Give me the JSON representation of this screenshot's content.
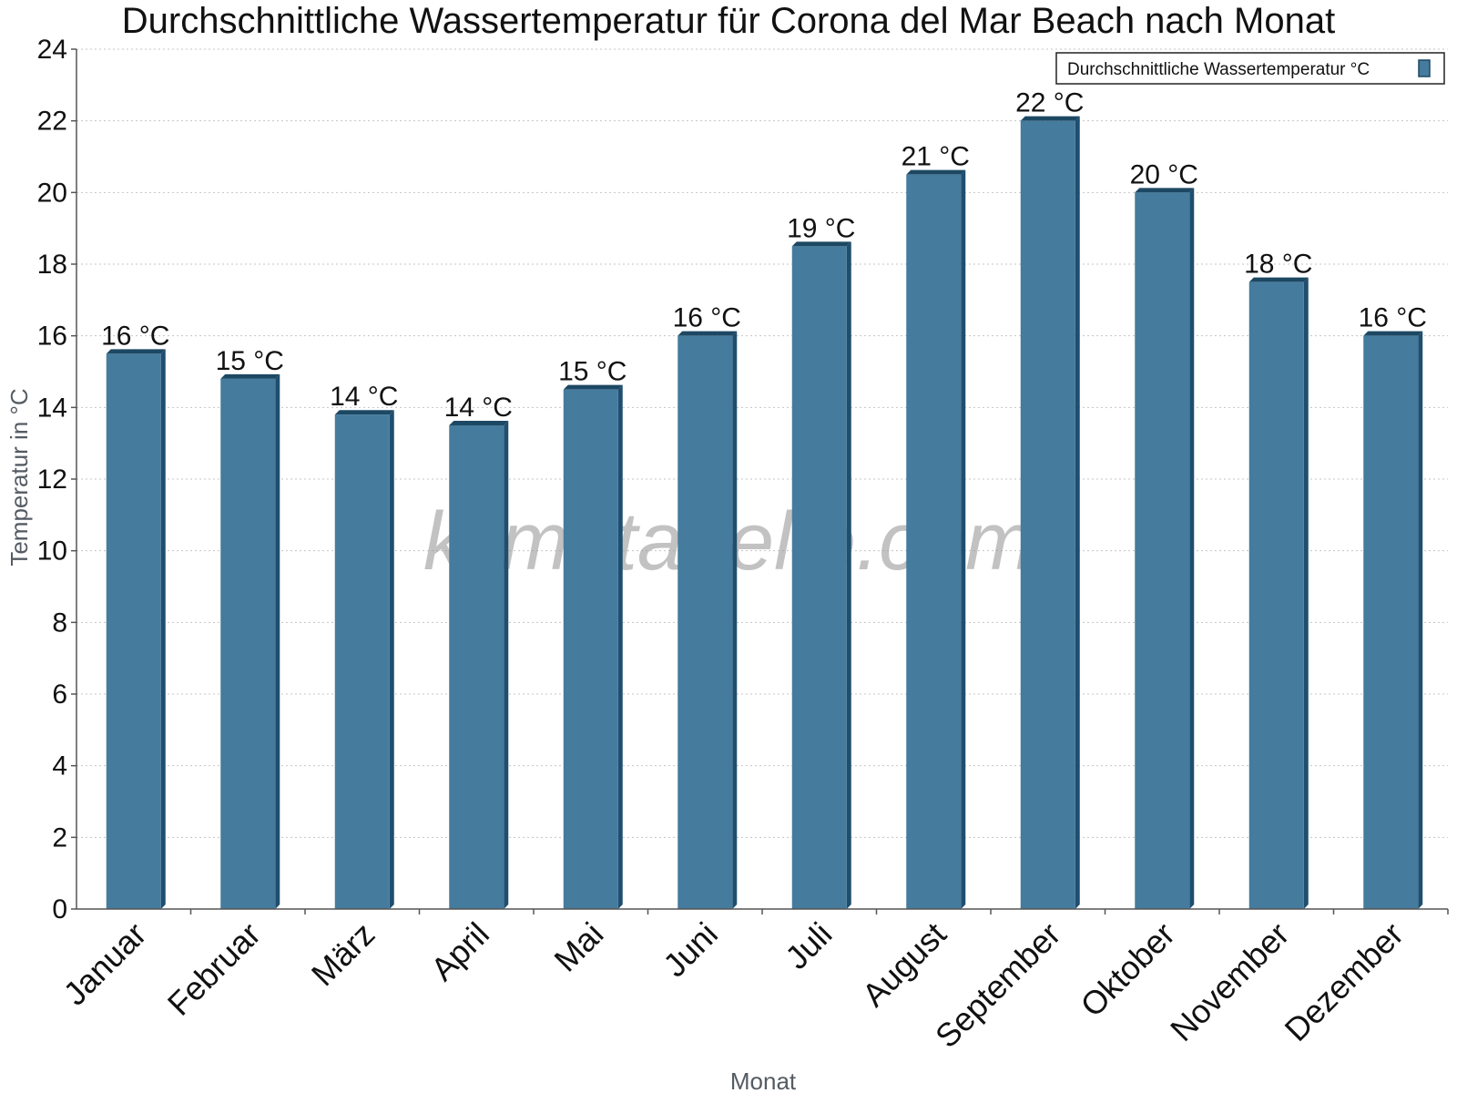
{
  "watermark": "klimatabelle.com",
  "chart_data": {
    "type": "bar",
    "title": "Durchschnittliche Wassertemperatur für Corona del Mar Beach nach Monat",
    "xlabel": "Monat",
    "ylabel": "Temperatur in °C",
    "ylim": [
      0,
      24
    ],
    "y_ticks": [
      0,
      2,
      4,
      6,
      8,
      10,
      12,
      14,
      16,
      18,
      20,
      22,
      24
    ],
    "grid": true,
    "legend_position": "top-right",
    "categories": [
      "Januar",
      "Februar",
      "März",
      "April",
      "Mai",
      "Juni",
      "Juli",
      "August",
      "September",
      "Oktober",
      "November",
      "Dezember"
    ],
    "series": [
      {
        "name": "Durchschnittliche Wassertemperatur °C",
        "values": [
          15.5,
          14.8,
          13.8,
          13.5,
          14.5,
          16.0,
          18.5,
          20.5,
          22.0,
          20.0,
          17.5,
          16.0
        ],
        "labels": [
          "16 °C",
          "15 °C",
          "14 °C",
          "14 °C",
          "15 °C",
          "16 °C",
          "19 °C",
          "21 °C",
          "22 °C",
          "20 °C",
          "18 °C",
          "16 °C"
        ]
      }
    ],
    "colors": {
      "bar_face": "#457b9d",
      "bar_side": "#1f4e6e",
      "bar_top": "#1d4863"
    }
  }
}
